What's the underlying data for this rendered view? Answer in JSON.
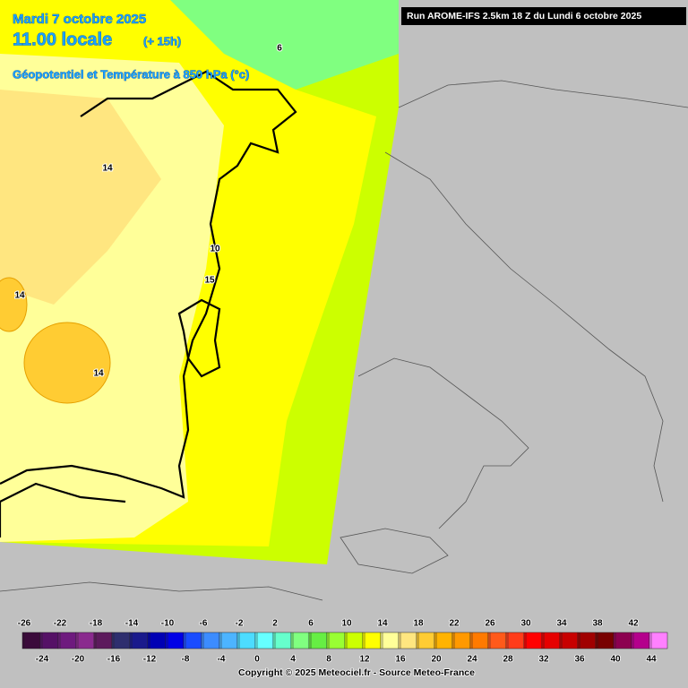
{
  "header": {
    "date": "Mardi 7 octobre 2025",
    "time": "11.00 locale",
    "lead": "(+ 15h)",
    "field": "Géopotentiel et Température à 850 hPa (°c)",
    "run": "Run AROME-IFS 2.5km 18 Z du Lundi 6 octobre 2025"
  },
  "contour_labels": [
    "14",
    "14",
    "14",
    "10",
    "15",
    "6"
  ],
  "legend": {
    "ticks": [
      -26,
      -24,
      -22,
      -20,
      -18,
      -16,
      -14,
      -12,
      -10,
      -8,
      -6,
      -4,
      -2,
      0,
      2,
      4,
      6,
      8,
      10,
      12,
      14,
      16,
      18,
      20,
      22,
      24,
      26,
      28,
      30,
      32,
      34,
      36,
      38,
      40,
      42,
      44
    ],
    "colors": [
      "#3b0b3b",
      "#551166",
      "#6e1a7e",
      "#8a2a8e",
      "#5c1a5c",
      "#2e2e6e",
      "#1a1a8c",
      "#0000b4",
      "#0000e6",
      "#1a4cff",
      "#3c8cff",
      "#4cb4ff",
      "#4cdcff",
      "#66ffff",
      "#66ffcc",
      "#80ff80",
      "#66ee44",
      "#99ff33",
      "#ccff00",
      "#ffff00",
      "#ffff99",
      "#ffe680",
      "#ffcc33",
      "#ffb300",
      "#ff9900",
      "#ff7a00",
      "#ff5a1a",
      "#ff3c1a",
      "#ff0000",
      "#e60000",
      "#c80000",
      "#a00000",
      "#780000",
      "#8c0050",
      "#b4008c",
      "#ff80ff"
    ]
  },
  "footer": "Copyright © 2025 Meteociel.fr - Source Meteo-France"
}
